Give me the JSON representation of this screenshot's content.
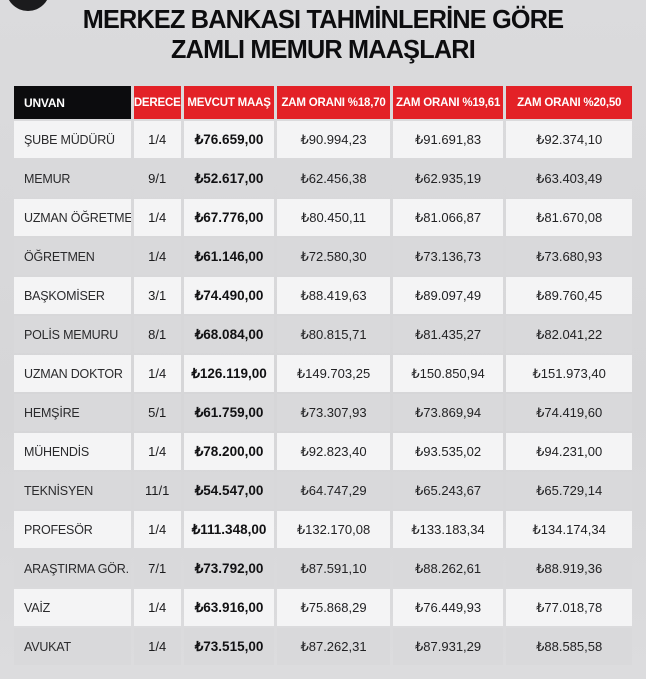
{
  "title": {
    "line1": "MERKEZ BANKASI TAHMİNLERİNE GÖRE",
    "line2": "ZAMLI MEMUR MAAŞLARI"
  },
  "colors": {
    "header_red": "#e32127",
    "header_black": "#0c0c0e",
    "row_light": "#f4f4f5",
    "row_dark": "#d9d9db",
    "page_bg": "#d7d7d9",
    "title_text": "#0d0d0f"
  },
  "chart_data": {
    "type": "table",
    "title": "MERKEZ BANKASI TAHMİNLERİNE GÖRE ZAMLI MEMUR MAAŞLARI",
    "columns": [
      "UNVAN",
      "DERECE",
      "MEVCUT MAAŞ",
      "ZAM ORANI %18,70",
      "ZAM ORANI %19,61",
      "ZAM ORANI %20,50"
    ],
    "rows": [
      [
        "ŞUBE MÜDÜRÜ",
        "1/4",
        "₺76.659,00",
        "₺90.994,23",
        "₺91.691,83",
        "₺92.374,10"
      ],
      [
        "MEMUR",
        "9/1",
        "₺52.617,00",
        "₺62.456,38",
        "₺62.935,19",
        "₺63.403,49"
      ],
      [
        "UZMAN ÖĞRETMEN",
        "1/4",
        "₺67.776,00",
        "₺80.450,11",
        "₺81.066,87",
        "₺81.670,08"
      ],
      [
        "ÖĞRETMEN",
        "1/4",
        "₺61.146,00",
        "₺72.580,30",
        "₺73.136,73",
        "₺73.680,93"
      ],
      [
        "BAŞKOMİSER",
        "3/1",
        "₺74.490,00",
        "₺88.419,63",
        "₺89.097,49",
        "₺89.760,45"
      ],
      [
        "POLİS MEMURU",
        "8/1",
        "₺68.084,00",
        "₺80.815,71",
        "₺81.435,27",
        "₺82.041,22"
      ],
      [
        "UZMAN DOKTOR",
        "1/4",
        "₺126.119,00",
        "₺149.703,25",
        "₺150.850,94",
        "₺151.973,40"
      ],
      [
        "HEMŞİRE",
        "5/1",
        "₺61.759,00",
        "₺73.307,93",
        "₺73.869,94",
        "₺74.419,60"
      ],
      [
        "MÜHENDİS",
        "1/4",
        "₺78.200,00",
        "₺92.823,40",
        "₺93.535,02",
        "₺94.231,00"
      ],
      [
        "TEKNİSYEN",
        "11/1",
        "₺54.547,00",
        "₺64.747,29",
        "₺65.243,67",
        "₺65.729,14"
      ],
      [
        "PROFESÖR",
        "1/4",
        "₺111.348,00",
        "₺132.170,08",
        "₺133.183,34",
        "₺134.174,34"
      ],
      [
        "ARAŞTIRMA GÖR.",
        "7/1",
        "₺73.792,00",
        "₺87.591,10",
        "₺88.262,61",
        "₺88.919,36"
      ],
      [
        "VAİZ",
        "1/4",
        "₺63.916,00",
        "₺75.868,29",
        "₺76.449,93",
        "₺77.018,78"
      ],
      [
        "AVUKAT",
        "1/4",
        "₺73.515,00",
        "₺87.262,31",
        "₺87.931,29",
        "₺88.585,58"
      ]
    ]
  }
}
